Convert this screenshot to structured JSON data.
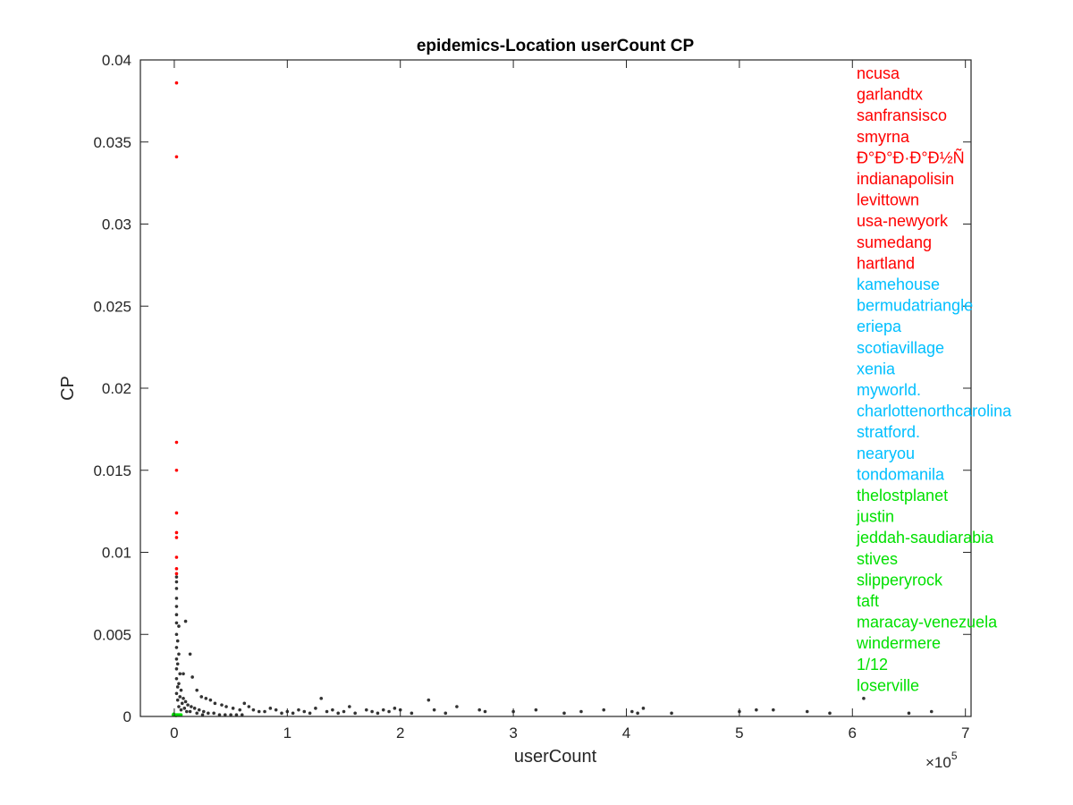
{
  "chart_data": {
    "type": "scatter",
    "title": "epidemics-Location userCount CP",
    "xlabel": "userCount",
    "ylabel": "CP",
    "x_multiplier_label": "×10",
    "x_multiplier_exponent": "5",
    "xlim": [
      -0.3,
      7.05
    ],
    "ylim": [
      0,
      0.04
    ],
    "x_ticks": [
      0,
      1,
      2,
      3,
      4,
      5,
      6,
      7
    ],
    "x_tick_labels": [
      "0",
      "1",
      "2",
      "3",
      "4",
      "5",
      "6",
      "7"
    ],
    "y_ticks": [
      0,
      0.005,
      0.01,
      0.015,
      0.02,
      0.025,
      0.03,
      0.035,
      0.04
    ],
    "y_tick_labels": [
      "0",
      "0.005",
      "0.01",
      "0.015",
      "0.02",
      "0.025",
      "0.03",
      "0.035",
      "0.04"
    ],
    "colors": {
      "top": "#ff0000",
      "mid": "#00bfff",
      "low": "#00e000",
      "other": "#333333",
      "axis": "#262626"
    },
    "series": [
      {
        "group": "other",
        "points": [
          [
            0.02,
            0.0085
          ],
          [
            0.02,
            0.0082
          ],
          [
            0.02,
            0.0078
          ],
          [
            0.02,
            0.0072
          ],
          [
            0.02,
            0.0067
          ],
          [
            0.02,
            0.0062
          ],
          [
            0.02,
            0.0057
          ],
          [
            0.04,
            0.0055
          ],
          [
            0.02,
            0.005
          ],
          [
            0.03,
            0.0046
          ],
          [
            0.02,
            0.0042
          ],
          [
            0.04,
            0.0038
          ],
          [
            0.02,
            0.0035
          ],
          [
            0.03,
            0.0032
          ],
          [
            0.02,
            0.0029
          ],
          [
            0.05,
            0.0026
          ],
          [
            0.02,
            0.0023
          ],
          [
            0.04,
            0.002
          ],
          [
            0.03,
            0.0018
          ],
          [
            0.06,
            0.0016
          ],
          [
            0.02,
            0.0014
          ],
          [
            0.05,
            0.0012
          ],
          [
            0.08,
            0.0011
          ],
          [
            0.03,
            0.001
          ],
          [
            0.1,
            0.0009
          ],
          [
            0.07,
            0.0008
          ],
          [
            0.12,
            0.0007
          ],
          [
            0.04,
            0.0006
          ],
          [
            0.15,
            0.0006
          ],
          [
            0.09,
            0.0005
          ],
          [
            0.18,
            0.0005
          ],
          [
            0.06,
            0.0004
          ],
          [
            0.22,
            0.0004
          ],
          [
            0.11,
            0.0003
          ],
          [
            0.26,
            0.0003
          ],
          [
            0.14,
            0.0003
          ],
          [
            0.3,
            0.0002
          ],
          [
            0.2,
            0.0002
          ],
          [
            0.35,
            0.0002
          ],
          [
            0.25,
            0.0001
          ],
          [
            0.4,
            0.0001
          ],
          [
            0.45,
            0.0001
          ],
          [
            0.5,
            0.0001
          ],
          [
            0.55,
            0.0001
          ],
          [
            0.6,
            0.0001
          ],
          [
            0.1,
            0.0058
          ],
          [
            0.14,
            0.0038
          ],
          [
            0.08,
            0.0026
          ],
          [
            0.16,
            0.0024
          ],
          [
            0.2,
            0.0016
          ],
          [
            0.24,
            0.0012
          ],
          [
            0.28,
            0.0011
          ],
          [
            0.32,
            0.001
          ],
          [
            0.36,
            0.0008
          ],
          [
            0.42,
            0.0007
          ],
          [
            0.46,
            0.0006
          ],
          [
            0.52,
            0.0005
          ],
          [
            0.58,
            0.0004
          ],
          [
            0.62,
            0.0008
          ],
          [
            0.66,
            0.0006
          ],
          [
            0.7,
            0.0004
          ],
          [
            0.75,
            0.0003
          ],
          [
            0.8,
            0.0003
          ],
          [
            0.85,
            0.0005
          ],
          [
            0.9,
            0.0004
          ],
          [
            0.95,
            0.0002
          ],
          [
            1.0,
            0.0003
          ],
          [
            1.05,
            0.0002
          ],
          [
            1.1,
            0.0004
          ],
          [
            1.15,
            0.0003
          ],
          [
            1.2,
            0.0002
          ],
          [
            1.25,
            0.0005
          ],
          [
            1.3,
            0.0011
          ],
          [
            1.35,
            0.0003
          ],
          [
            1.4,
            0.0004
          ],
          [
            1.45,
            0.0002
          ],
          [
            1.5,
            0.0003
          ],
          [
            1.55,
            0.0006
          ],
          [
            1.6,
            0.0002
          ],
          [
            1.7,
            0.0004
          ],
          [
            1.75,
            0.0003
          ],
          [
            1.8,
            0.0002
          ],
          [
            1.85,
            0.0004
          ],
          [
            1.9,
            0.0003
          ],
          [
            1.95,
            0.0005
          ],
          [
            2.0,
            0.0004
          ],
          [
            2.1,
            0.0002
          ],
          [
            2.25,
            0.001
          ],
          [
            2.3,
            0.0004
          ],
          [
            2.4,
            0.0002
          ],
          [
            2.5,
            0.0006
          ],
          [
            2.7,
            0.0004
          ],
          [
            2.75,
            0.0003
          ],
          [
            3.0,
            0.0003
          ],
          [
            3.2,
            0.0004
          ],
          [
            3.45,
            0.0002
          ],
          [
            3.6,
            0.0003
          ],
          [
            3.8,
            0.0004
          ],
          [
            4.05,
            0.0003
          ],
          [
            4.1,
            0.0002
          ],
          [
            4.15,
            0.0005
          ],
          [
            4.4,
            0.0002
          ],
          [
            5.0,
            0.0003
          ],
          [
            5.15,
            0.0004
          ],
          [
            5.3,
            0.0004
          ],
          [
            5.6,
            0.0003
          ],
          [
            6.1,
            0.0011
          ],
          [
            6.7,
            0.0003
          ],
          [
            6.5,
            0.0002
          ],
          [
            5.8,
            0.0002
          ]
        ]
      },
      {
        "group": "top",
        "points": [
          [
            0.02,
            0.0386
          ],
          [
            0.02,
            0.0341
          ],
          [
            0.02,
            0.0167
          ],
          [
            0.02,
            0.015
          ],
          [
            0.02,
            0.0124
          ],
          [
            0.02,
            0.0112
          ],
          [
            0.02,
            0.0109
          ],
          [
            0.02,
            0.0097
          ],
          [
            0.02,
            0.009
          ],
          [
            0.02,
            0.0087
          ]
        ]
      },
      {
        "group": "low",
        "points": [
          [
            -0.01,
            0.0001
          ],
          [
            0.0,
            0.0001
          ],
          [
            0.01,
            0.0001
          ],
          [
            0.02,
            0.0001
          ],
          [
            0.03,
            0.0001
          ],
          [
            0.04,
            0.0001
          ],
          [
            0.05,
            0.0001
          ],
          [
            0.06,
            0.0001
          ],
          [
            -0.005,
            0.00015
          ],
          [
            0.015,
            5e-05
          ]
        ]
      }
    ],
    "legend_position": "right-inside",
    "legend": [
      {
        "label": "ncusa",
        "group": "top"
      },
      {
        "label": "garlandtx",
        "group": "top"
      },
      {
        "label": "sanfransisco",
        "group": "top"
      },
      {
        "label": "smyrna",
        "group": "top"
      },
      {
        "label": "Ð°Ð°Ð·Ð°Ð½Ñ",
        "group": "top"
      },
      {
        "label": "indianapolisin",
        "group": "top"
      },
      {
        "label": "levittown",
        "group": "top"
      },
      {
        "label": "usa-newyork",
        "group": "top"
      },
      {
        "label": "sumedang",
        "group": "top"
      },
      {
        "label": "hartland",
        "group": "top"
      },
      {
        "label": "kamehouse",
        "group": "mid"
      },
      {
        "label": "bermudatriangle",
        "group": "mid"
      },
      {
        "label": "eriepa",
        "group": "mid"
      },
      {
        "label": "scotiavillage",
        "group": "mid"
      },
      {
        "label": "xenia",
        "group": "mid"
      },
      {
        "label": "myworld.",
        "group": "mid"
      },
      {
        "label": "charlottenorthcarolina",
        "group": "mid"
      },
      {
        "label": "stratford.",
        "group": "mid"
      },
      {
        "label": "nearyou",
        "group": "mid"
      },
      {
        "label": "tondomanila",
        "group": "mid"
      },
      {
        "label": "thelostplanet",
        "group": "low"
      },
      {
        "label": "justin",
        "group": "low"
      },
      {
        "label": "jeddah-saudiarabia",
        "group": "low"
      },
      {
        "label": "stives",
        "group": "low"
      },
      {
        "label": "slipperyrock",
        "group": "low"
      },
      {
        "label": "taft",
        "group": "low"
      },
      {
        "label": "maracay-venezuela",
        "group": "low"
      },
      {
        "label": "windermere",
        "group": "low"
      },
      {
        "label": "1/12",
        "group": "low"
      },
      {
        "label": "loserville",
        "group": "low"
      }
    ]
  }
}
